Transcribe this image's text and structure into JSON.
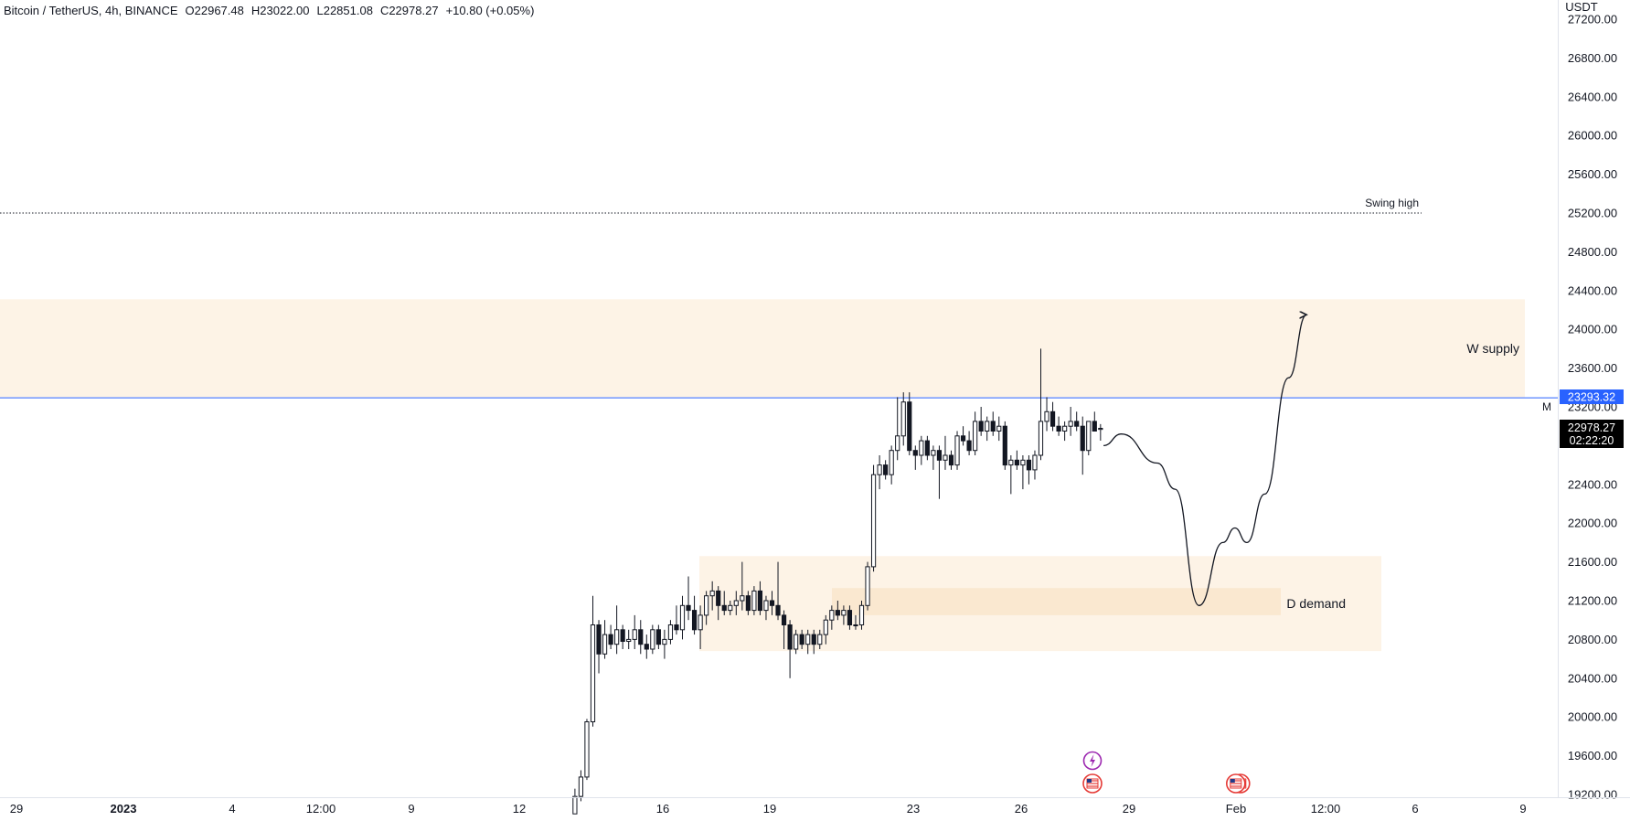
{
  "header": {
    "symbol": "Bitcoin / TetherUS, 4h, BINANCE",
    "open": "O22967.48",
    "high": "H23022.00",
    "low": "L22851.08",
    "close": "C22978.27",
    "change": "+10.80 (+0.05%)"
  },
  "price_axis": {
    "currency": "USDT",
    "ticks": [
      "27200.00",
      "26800.00",
      "26400.00",
      "26000.00",
      "25600.00",
      "25200.00",
      "24800.00",
      "24400.00",
      "24000.00",
      "23600.00",
      "23200.00",
      "22400.00",
      "22000.00",
      "21600.00",
      "21200.00",
      "20800.00",
      "20400.00",
      "20000.00",
      "19600.00",
      "19200.00"
    ]
  },
  "time_axis": {
    "ticks": [
      {
        "label": "29",
        "bold": false
      },
      {
        "label": "2023",
        "bold": true
      },
      {
        "label": "4",
        "bold": false
      },
      {
        "label": "12:00",
        "bold": false
      },
      {
        "label": "9",
        "bold": false
      },
      {
        "label": "12",
        "bold": false
      },
      {
        "label": "16",
        "bold": false
      },
      {
        "label": "19",
        "bold": false
      },
      {
        "label": "23",
        "bold": false
      },
      {
        "label": "26",
        "bold": false
      },
      {
        "label": "29",
        "bold": false
      },
      {
        "label": "Feb",
        "bold": false
      },
      {
        "label": "12:00",
        "bold": false
      },
      {
        "label": "6",
        "bold": false
      },
      {
        "label": "9",
        "bold": false
      }
    ]
  },
  "markers": {
    "horizontal_line_price": "23293.32",
    "horizontal_line_flag": "M",
    "last_price": "22978.27",
    "countdown": "02:22:20"
  },
  "annotations": {
    "swing_high": "Swing high",
    "supply_zone": "W supply",
    "demand_zone": "D demand"
  },
  "colors": {
    "up_body": "#ffffff",
    "down_body": "#131722",
    "candle_outline": "#131722",
    "zone_fill": "#fdf3e6",
    "zone_inner_fill": "#fae8d0",
    "hline": "#2962ff",
    "path": "#131722",
    "event_purple": "#9c27b0",
    "event_red": "#e53935"
  },
  "chart_data": {
    "type": "candlestick",
    "title": "Bitcoin / TetherUS, 4h, BINANCE",
    "y_unit": "USDT",
    "ylim": [
      19100,
      27300
    ],
    "x_range": [
      "2022-12-29",
      "2023-02-09"
    ],
    "grid": false,
    "levels": [
      {
        "name": "Swing high",
        "price": 25200
      },
      {
        "name": "Horizontal line",
        "price": 23293.32
      }
    ],
    "zones": [
      {
        "name": "W supply",
        "from": 23300,
        "to": 24310
      },
      {
        "name": "D demand",
        "from": 20680,
        "to": 21660
      },
      {
        "name": "D demand core",
        "from": 21050,
        "to": 21330
      }
    ],
    "ohlc": [
      {
        "t": "2023-01-13 12:00",
        "o": 19000,
        "h": 19260,
        "l": 19000,
        "c": 19180
      },
      {
        "t": "2023-01-13 16:00",
        "o": 19180,
        "h": 19450,
        "l": 19130,
        "c": 19380
      },
      {
        "t": "2023-01-13 20:00",
        "o": 19380,
        "h": 19980,
        "l": 19350,
        "c": 19950
      },
      {
        "t": "2023-01-14 00:00",
        "o": 19950,
        "h": 21250,
        "l": 19900,
        "c": 20950
      },
      {
        "t": "2023-01-14 04:00",
        "o": 20950,
        "h": 21000,
        "l": 20450,
        "c": 20650
      },
      {
        "t": "2023-01-14 08:00",
        "o": 20650,
        "h": 21000,
        "l": 20600,
        "c": 20850
      },
      {
        "t": "2023-01-14 12:00",
        "o": 20850,
        "h": 20950,
        "l": 20700,
        "c": 20750
      },
      {
        "t": "2023-01-14 16:00",
        "o": 20750,
        "h": 21150,
        "l": 20650,
        "c": 20900
      },
      {
        "t": "2023-01-14 20:00",
        "o": 20900,
        "h": 20950,
        "l": 20700,
        "c": 20780
      },
      {
        "t": "2023-01-15 00:00",
        "o": 20780,
        "h": 20900,
        "l": 20700,
        "c": 20800
      },
      {
        "t": "2023-01-15 04:00",
        "o": 20800,
        "h": 21050,
        "l": 20700,
        "c": 20900
      },
      {
        "t": "2023-01-15 08:00",
        "o": 20900,
        "h": 21000,
        "l": 20650,
        "c": 20750
      },
      {
        "t": "2023-01-15 12:00",
        "o": 20750,
        "h": 20850,
        "l": 20600,
        "c": 20700
      },
      {
        "t": "2023-01-15 16:00",
        "o": 20700,
        "h": 20950,
        "l": 20650,
        "c": 20900
      },
      {
        "t": "2023-01-15 20:00",
        "o": 20900,
        "h": 20950,
        "l": 20700,
        "c": 20750
      },
      {
        "t": "2023-01-16 00:00",
        "o": 20750,
        "h": 20900,
        "l": 20600,
        "c": 20800
      },
      {
        "t": "2023-01-16 04:00",
        "o": 20800,
        "h": 21000,
        "l": 20750,
        "c": 20950
      },
      {
        "t": "2023-01-16 08:00",
        "o": 20950,
        "h": 21150,
        "l": 20850,
        "c": 20900
      },
      {
        "t": "2023-01-16 12:00",
        "o": 20900,
        "h": 21250,
        "l": 20800,
        "c": 21150
      },
      {
        "t": "2023-01-16 16:00",
        "o": 21150,
        "h": 21450,
        "l": 21000,
        "c": 21100
      },
      {
        "t": "2023-01-16 20:00",
        "o": 21100,
        "h": 21250,
        "l": 20850,
        "c": 20900
      },
      {
        "t": "2023-01-17 00:00",
        "o": 20900,
        "h": 21150,
        "l": 20700,
        "c": 21050
      },
      {
        "t": "2023-01-17 04:00",
        "o": 21050,
        "h": 21300,
        "l": 20950,
        "c": 21250
      },
      {
        "t": "2023-01-17 08:00",
        "o": 21250,
        "h": 21400,
        "l": 21100,
        "c": 21300
      },
      {
        "t": "2023-01-17 12:00",
        "o": 21300,
        "h": 21350,
        "l": 21000,
        "c": 21150
      },
      {
        "t": "2023-01-17 16:00",
        "o": 21150,
        "h": 21300,
        "l": 21050,
        "c": 21100
      },
      {
        "t": "2023-01-17 20:00",
        "o": 21100,
        "h": 21200,
        "l": 21050,
        "c": 21150
      },
      {
        "t": "2023-01-18 00:00",
        "o": 21150,
        "h": 21300,
        "l": 21050,
        "c": 21200
      },
      {
        "t": "2023-01-18 04:00",
        "o": 21200,
        "h": 21600,
        "l": 21100,
        "c": 21250
      },
      {
        "t": "2023-01-18 08:00",
        "o": 21250,
        "h": 21300,
        "l": 21050,
        "c": 21100
      },
      {
        "t": "2023-01-18 12:00",
        "o": 21100,
        "h": 21350,
        "l": 21050,
        "c": 21300
      },
      {
        "t": "2023-01-18 16:00",
        "o": 21300,
        "h": 21400,
        "l": 21050,
        "c": 21100
      },
      {
        "t": "2023-01-18 20:00",
        "o": 21100,
        "h": 21250,
        "l": 21000,
        "c": 21200
      },
      {
        "t": "2023-01-19 00:00",
        "o": 21200,
        "h": 21300,
        "l": 21050,
        "c": 21150
      },
      {
        "t": "2023-01-19 04:00",
        "o": 21150,
        "h": 21600,
        "l": 21000,
        "c": 21050
      },
      {
        "t": "2023-01-19 08:00",
        "o": 21050,
        "h": 21100,
        "l": 20700,
        "c": 20950
      },
      {
        "t": "2023-01-19 12:00",
        "o": 20950,
        "h": 21000,
        "l": 20400,
        "c": 20700
      },
      {
        "t": "2023-01-19 16:00",
        "o": 20700,
        "h": 20900,
        "l": 20650,
        "c": 20850
      },
      {
        "t": "2023-01-19 20:00",
        "o": 20850,
        "h": 20900,
        "l": 20700,
        "c": 20750
      },
      {
        "t": "2023-01-20 00:00",
        "o": 20750,
        "h": 20900,
        "l": 20650,
        "c": 20850
      },
      {
        "t": "2023-01-20 04:00",
        "o": 20850,
        "h": 20900,
        "l": 20650,
        "c": 20750
      },
      {
        "t": "2023-01-20 08:00",
        "o": 20750,
        "h": 20900,
        "l": 20700,
        "c": 20850
      },
      {
        "t": "2023-01-20 12:00",
        "o": 20850,
        "h": 21050,
        "l": 20750,
        "c": 21000
      },
      {
        "t": "2023-01-20 16:00",
        "o": 21000,
        "h": 21150,
        "l": 20900,
        "c": 21100
      },
      {
        "t": "2023-01-20 20:00",
        "o": 21100,
        "h": 21200,
        "l": 21000,
        "c": 21050
      },
      {
        "t": "2023-01-21 00:00",
        "o": 21050,
        "h": 21150,
        "l": 20950,
        "c": 21100
      },
      {
        "t": "2023-01-21 04:00",
        "o": 21100,
        "h": 21150,
        "l": 20900,
        "c": 20950
      },
      {
        "t": "2023-01-21 08:00",
        "o": 20950,
        "h": 21050,
        "l": 20900,
        "c": 20950
      },
      {
        "t": "2023-01-21 12:00",
        "o": 20950,
        "h": 21200,
        "l": 20900,
        "c": 21150
      },
      {
        "t": "2023-01-21 16:00",
        "o": 21150,
        "h": 21600,
        "l": 21100,
        "c": 21550
      },
      {
        "t": "2023-01-21 20:00",
        "o": 21550,
        "h": 22600,
        "l": 21500,
        "c": 22500
      },
      {
        "t": "2023-01-22 00:00",
        "o": 22500,
        "h": 22700,
        "l": 22350,
        "c": 22600
      },
      {
        "t": "2023-01-22 04:00",
        "o": 22600,
        "h": 22650,
        "l": 22450,
        "c": 22500
      },
      {
        "t": "2023-01-22 08:00",
        "o": 22500,
        "h": 22800,
        "l": 22400,
        "c": 22750
      },
      {
        "t": "2023-01-22 12:00",
        "o": 22750,
        "h": 23300,
        "l": 22650,
        "c": 22900
      },
      {
        "t": "2023-01-22 16:00",
        "o": 22900,
        "h": 23350,
        "l": 22800,
        "c": 23250
      },
      {
        "t": "2023-01-22 20:00",
        "o": 23250,
        "h": 23350,
        "l": 22700,
        "c": 22750
      },
      {
        "t": "2023-01-23 00:00",
        "o": 22750,
        "h": 22800,
        "l": 22550,
        "c": 22700
      },
      {
        "t": "2023-01-23 04:00",
        "o": 22700,
        "h": 22900,
        "l": 22600,
        "c": 22850
      },
      {
        "t": "2023-01-23 08:00",
        "o": 22850,
        "h": 22900,
        "l": 22650,
        "c": 22700
      },
      {
        "t": "2023-01-23 12:00",
        "o": 22700,
        "h": 22800,
        "l": 22550,
        "c": 22750
      },
      {
        "t": "2023-01-23 16:00",
        "o": 22750,
        "h": 22800,
        "l": 22250,
        "c": 22650
      },
      {
        "t": "2023-01-23 20:00",
        "o": 22650,
        "h": 22900,
        "l": 22550,
        "c": 22700
      },
      {
        "t": "2023-01-24 00:00",
        "o": 22700,
        "h": 22750,
        "l": 22550,
        "c": 22600
      },
      {
        "t": "2023-01-24 04:00",
        "o": 22600,
        "h": 22950,
        "l": 22550,
        "c": 22900
      },
      {
        "t": "2023-01-24 08:00",
        "o": 22900,
        "h": 23000,
        "l": 22800,
        "c": 22850
      },
      {
        "t": "2023-01-24 12:00",
        "o": 22850,
        "h": 22950,
        "l": 22700,
        "c": 22750
      },
      {
        "t": "2023-01-24 16:00",
        "o": 22750,
        "h": 23150,
        "l": 22700,
        "c": 23050
      },
      {
        "t": "2023-01-24 20:00",
        "o": 23050,
        "h": 23200,
        "l": 22900,
        "c": 22950
      },
      {
        "t": "2023-01-25 00:00",
        "o": 22950,
        "h": 23100,
        "l": 22850,
        "c": 23050
      },
      {
        "t": "2023-01-25 04:00",
        "o": 23050,
        "h": 23150,
        "l": 22900,
        "c": 22950
      },
      {
        "t": "2023-01-25 08:00",
        "o": 22950,
        "h": 23100,
        "l": 22850,
        "c": 23000
      },
      {
        "t": "2023-01-25 12:00",
        "o": 23000,
        "h": 23050,
        "l": 22550,
        "c": 22600
      },
      {
        "t": "2023-01-25 16:00",
        "o": 22600,
        "h": 22700,
        "l": 22300,
        "c": 22650
      },
      {
        "t": "2023-01-25 20:00",
        "o": 22650,
        "h": 22750,
        "l": 22550,
        "c": 22600
      },
      {
        "t": "2023-01-26 00:00",
        "o": 22600,
        "h": 22700,
        "l": 22350,
        "c": 22650
      },
      {
        "t": "2023-01-26 04:00",
        "o": 22650,
        "h": 22700,
        "l": 22400,
        "c": 22550
      },
      {
        "t": "2023-01-26 08:00",
        "o": 22550,
        "h": 22750,
        "l": 22450,
        "c": 22700
      },
      {
        "t": "2023-01-26 12:00",
        "o": 22700,
        "h": 23800,
        "l": 22650,
        "c": 23050
      },
      {
        "t": "2023-01-26 16:00",
        "o": 23050,
        "h": 23300,
        "l": 22950,
        "c": 23150
      },
      {
        "t": "2023-01-26 20:00",
        "o": 23150,
        "h": 23250,
        "l": 22950,
        "c": 23000
      },
      {
        "t": "2023-01-27 00:00",
        "o": 23000,
        "h": 23100,
        "l": 22900,
        "c": 22950
      },
      {
        "t": "2023-01-27 04:00",
        "o": 22950,
        "h": 23050,
        "l": 22850,
        "c": 23000
      },
      {
        "t": "2023-01-27 08:00",
        "o": 23000,
        "h": 23200,
        "l": 22900,
        "c": 23050
      },
      {
        "t": "2023-01-27 12:00",
        "o": 23050,
        "h": 23150,
        "l": 22950,
        "c": 23000
      },
      {
        "t": "2023-01-27 16:00",
        "o": 23000,
        "h": 23100,
        "l": 22500,
        "c": 22750
      },
      {
        "t": "2023-01-27 20:00",
        "o": 22750,
        "h": 23050,
        "l": 22700,
        "c": 23050
      },
      {
        "t": "2023-01-28 00:00",
        "o": 23050,
        "h": 23150,
        "l": 22950,
        "c": 22950
      },
      {
        "t": "2023-01-28 04:00",
        "o": 22967.48,
        "h": 23022,
        "l": 22851.08,
        "c": 22978.27
      }
    ],
    "projection": [
      {
        "t": "2023-01-28 08:00",
        "y": 22800
      },
      {
        "t": "2023-01-28 20:00",
        "y": 22920
      },
      {
        "t": "2023-01-29 20:00",
        "y": 22620
      },
      {
        "t": "2023-01-30 08:00",
        "y": 22350
      },
      {
        "t": "2023-01-31 00:00",
        "y": 21150
      },
      {
        "t": "2023-01-31 16:00",
        "y": 21800
      },
      {
        "t": "2023-02-01 00:00",
        "y": 21950
      },
      {
        "t": "2023-02-01 08:00",
        "y": 21800
      },
      {
        "t": "2023-02-01 20:00",
        "y": 22300
      },
      {
        "t": "2023-02-02 12:00",
        "y": 23500
      },
      {
        "t": "2023-02-03 00:00",
        "y": 24150
      }
    ],
    "events": [
      {
        "t": "2023-01-28 00:00",
        "type": "purple-bolt"
      },
      {
        "t": "2023-01-28 00:00",
        "type": "us-flag"
      },
      {
        "t": "2023-02-01 00:00",
        "type": "us-flag-double"
      }
    ]
  }
}
